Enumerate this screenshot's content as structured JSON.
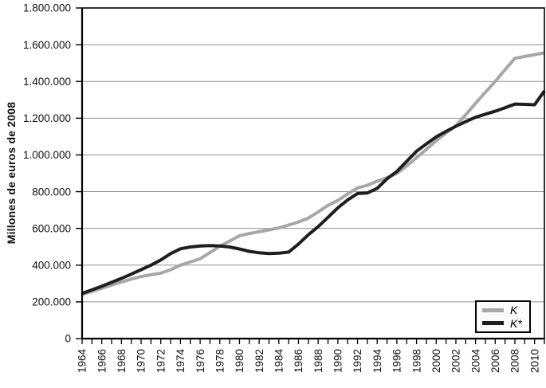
{
  "chart_data": {
    "type": "line",
    "title": "",
    "xlabel": "",
    "ylabel": "Millones de euros de 2008",
    "ylim": [
      0,
      1800000
    ],
    "grid": "horizontal-only",
    "grid_color": "#8f8f8f",
    "axis_color": "#000000",
    "background": "#ffffff",
    "legend_position": "bottom-right-inside",
    "y_ticks": [
      {
        "value": 0,
        "label": "0"
      },
      {
        "value": 200000,
        "label": "200.000"
      },
      {
        "value": 400000,
        "label": "400.000"
      },
      {
        "value": 600000,
        "label": "600.000"
      },
      {
        "value": 800000,
        "label": "800.000"
      },
      {
        "value": 1000000,
        "label": "1.000.000"
      },
      {
        "value": 1200000,
        "label": "1.200.000"
      },
      {
        "value": 1400000,
        "label": "1.400.000"
      },
      {
        "value": 1600000,
        "label": "1.600.000"
      },
      {
        "value": 1800000,
        "label": "1.800.000"
      }
    ],
    "x_tick_labels": [
      "1964",
      "1966",
      "1968",
      "1970",
      "1972",
      "1974",
      "1976",
      "1978",
      "1980",
      "1982",
      "1984",
      "1986",
      "1988",
      "1990",
      "1992",
      "1994",
      "1996",
      "1998",
      "2000",
      "2002",
      "2004",
      "2006",
      "2008",
      "2010"
    ],
    "years": [
      1964,
      1965,
      1966,
      1967,
      1968,
      1969,
      1970,
      1971,
      1972,
      1973,
      1974,
      1975,
      1976,
      1977,
      1978,
      1979,
      1980,
      1981,
      1982,
      1983,
      1984,
      1985,
      1986,
      1987,
      1988,
      1989,
      1990,
      1991,
      1992,
      1993,
      1994,
      1995,
      1996,
      1997,
      1998,
      1999,
      2000,
      2001,
      2002,
      2003,
      2004,
      2005,
      2006,
      2007,
      2008,
      2009,
      2010,
      2011
    ],
    "series": [
      {
        "name": "K",
        "color": "#a7a7a7",
        "values": [
          240000,
          257000,
          274000,
          291000,
          308000,
          324000,
          338000,
          348000,
          356000,
          375000,
          400000,
          417000,
          435000,
          468000,
          503000,
          531000,
          560000,
          572000,
          582000,
          592000,
          603000,
          618000,
          635000,
          656000,
          690000,
          725000,
          752000,
          788000,
          820000,
          835000,
          857000,
          876000,
          900000,
          940000,
          985000,
          1030000,
          1078000,
          1119000,
          1158000,
          1219000,
          1281000,
          1341000,
          1400000,
          1464000,
          1526000,
          1536000,
          1546000,
          1556000
        ]
      },
      {
        "name": "K*",
        "color": "#1e1e1e",
        "values": [
          246000,
          265000,
          285000,
          306000,
          328000,
          351000,
          375000,
          400000,
          428000,
          463000,
          489000,
          499000,
          504000,
          506000,
          504000,
          499000,
          488000,
          475000,
          467000,
          463000,
          465000,
          471000,
          515000,
          565000,
          610000,
          660000,
          712000,
          755000,
          790000,
          793000,
          818000,
          870000,
          910000,
          965000,
          1020000,
          1060000,
          1098000,
          1128000,
          1156000,
          1181000,
          1205000,
          1222000,
          1238000,
          1257000,
          1277000,
          1275000,
          1273000,
          1348000
        ]
      }
    ]
  }
}
